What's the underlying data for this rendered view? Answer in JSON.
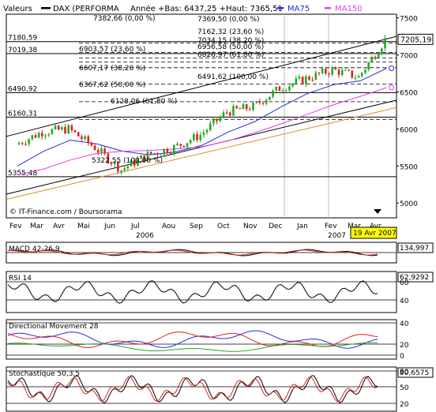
{
  "header": {
    "label": "Valeurs",
    "instrument": "DAX (PERFORMA",
    "stats": "Année +Bas: 6437,25 +Haut: 7365,51",
    "ma75_label": "MA75",
    "ma150_label": "MA150"
  },
  "price_panel": {
    "left_levels": [
      "7180,59",
      "7019,38",
      "6490,92",
      "6160,31",
      "5355,48"
    ],
    "fib_labels": [
      "7382,66 (0,00 %)",
      "7369,50 (0,00 %)",
      "7162,32 (23,60 %)",
      "7034,15 (38,20 %)",
      "6956,58 (50,00 %)",
      "6826,97 (61,80 %)",
      "6903,57 (23,60 %)",
      "6607,17 (38,20 %)",
      "6491,62 (100,00 %)",
      "6367,62 (50,00 %)",
      "6128,06 (61,80 %)",
      "5322,55 (100,00 %)"
    ],
    "y_ticks": [
      "7500",
      "7000",
      "6500",
      "6000",
      "5500",
      "5000"
    ],
    "last_value": "7205,19",
    "credit": "© IT-Finance.com / Boursorama",
    "months": [
      "Fev",
      "Mar",
      "Avr",
      "Mai",
      "Jun",
      "Jul",
      "Aou",
      "Sep",
      "Oct",
      "Nov",
      "Dec",
      "Jan",
      "Fev",
      "Mar",
      "Avr"
    ],
    "years": [
      "2006",
      "2007"
    ],
    "date_badge": "19 Avr 2007"
  },
  "indicators": [
    {
      "title": "MACD 42-26,9",
      "value": "134,997"
    },
    {
      "title": "RSI 14",
      "value": "62,9292",
      "ticks": [
        "60",
        "40"
      ]
    },
    {
      "title": "Directional Movement 28",
      "value": "",
      "ticks": [
        "40",
        "20",
        "0"
      ]
    },
    {
      "title": "Stochastique 50,3,5",
      "value": "90,6575",
      "ticks": [
        "80",
        "50",
        "20"
      ]
    }
  ],
  "colors": {
    "up_candle": "#22aa22",
    "down_candle": "#dd2222",
    "ma75": "#2a2ae0",
    "ma150": "#e040e0",
    "trend": "#000000",
    "trend_orange": "#e08a20",
    "badge": "#ffff00",
    "dmi_plus": "#2a2ae0",
    "dmi_minus": "#dd2222",
    "adx": "#22aa22"
  },
  "chart_data": {
    "type": "line",
    "title": "",
    "x": [
      "2006-02",
      "2006-03",
      "2006-04",
      "2006-05",
      "2006-06",
      "2006-07",
      "2006-08",
      "2006-09",
      "2006-10",
      "2006-11",
      "2006-12",
      "2007-01",
      "2007-02",
      "2007-03",
      "2007-04"
    ],
    "series": [
      {
        "name": "DAX (PERFORMA",
        "values": [
          5790,
          5960,
          6000,
          5750,
          5450,
          5650,
          5750,
          5920,
          6230,
          6300,
          6550,
          6680,
          6800,
          6700,
          7205
        ]
      },
      {
        "name": "MA75",
        "values": [
          5500,
          5700,
          5850,
          5800,
          5700,
          5650,
          5690,
          5780,
          5960,
          6100,
          6300,
          6480,
          6600,
          6650,
          6820
        ]
      },
      {
        "name": "MA150",
        "values": [
          5380,
          5460,
          5580,
          5670,
          5700,
          5710,
          5730,
          5760,
          5840,
          5950,
          6070,
          6200,
          6330,
          6440,
          6560
        ]
      }
    ],
    "ylim": [
      4800,
      7550
    ],
    "last": 7205.19,
    "indicator_values": {
      "macd": 134.997,
      "rsi": 62.9292,
      "stochastic": 90.6575
    }
  }
}
